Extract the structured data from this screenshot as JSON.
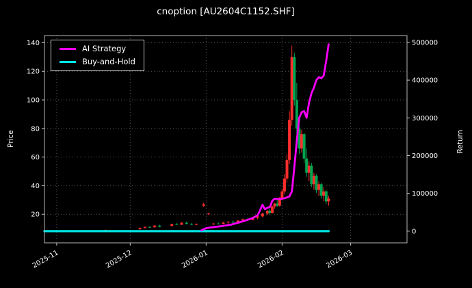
{
  "chart_data": {
    "type": "candlestick+line",
    "title": "cnoption [AU2604C1152.SHF]",
    "left_ylabel": "Price",
    "right_ylabel": "Return",
    "legend_position": "upper left",
    "grid": "dotted",
    "x_tick_labels": [
      "2025-11",
      "2025-12",
      "2026-01",
      "2026-02",
      "2026-03"
    ],
    "x_tick_t": [
      5,
      35,
      66,
      97,
      125
    ],
    "price_ticks": [
      20,
      40,
      60,
      80,
      100,
      120,
      140
    ],
    "return_ticks": [
      0,
      100000,
      200000,
      300000,
      400000,
      500000
    ],
    "price_range": [
      0,
      145
    ],
    "return_range": [
      -31000,
      518000
    ],
    "t_range": [
      0,
      148
    ],
    "candle_colors": {
      "up": "#ff2e2e",
      "down": "#00a550"
    },
    "candles": [
      [
        5,
        8.5,
        8.8,
        8.2,
        8.6
      ],
      [
        9,
        8.6,
        8.8,
        8.0,
        8.2
      ],
      [
        13,
        8.2,
        9.0,
        8.1,
        8.8
      ],
      [
        19,
        8.8,
        9.0,
        8.3,
        8.5
      ],
      [
        25,
        8.5,
        9.3,
        8.4,
        9.1
      ],
      [
        39,
        9.5,
        10.6,
        9.3,
        10.4
      ],
      [
        41,
        10.4,
        11.4,
        10.1,
        11.1
      ],
      [
        43,
        11.1,
        11.9,
        10.6,
        10.9
      ],
      [
        45,
        10.9,
        12.4,
        10.7,
        12.1
      ],
      [
        47,
        12.1,
        12.7,
        10.9,
        11.2
      ],
      [
        52,
        11.8,
        13.4,
        11.6,
        13.1
      ],
      [
        54,
        13.1,
        13.9,
        12.4,
        12.7
      ],
      [
        56,
        12.7,
        14.4,
        12.5,
        14.1
      ],
      [
        58,
        14.1,
        14.9,
        12.9,
        13.2
      ],
      [
        60,
        13.2,
        13.9,
        12.4,
        12.7
      ],
      [
        62,
        12.7,
        13.5,
        12.3,
        13.3
      ],
      [
        65,
        26,
        28,
        25,
        27
      ],
      [
        67,
        20,
        21,
        19.5,
        20.5
      ],
      [
        69,
        13,
        13.8,
        12.5,
        13.5
      ],
      [
        71,
        13.5,
        14.2,
        13,
        13.2
      ],
      [
        73,
        13.2,
        14.5,
        13,
        14.2
      ],
      [
        75,
        14.2,
        15,
        13.5,
        14.8
      ],
      [
        77,
        14.8,
        15.5,
        14,
        14.2
      ],
      [
        79,
        14.2,
        16,
        14,
        15.6
      ],
      [
        81,
        15.6,
        17,
        15,
        16.5
      ],
      [
        83,
        16.5,
        17.5,
        15.5,
        16
      ],
      [
        85,
        16,
        18,
        15.8,
        17.5
      ],
      [
        87,
        17.5,
        19,
        16.5,
        18.5
      ],
      [
        89,
        18.5,
        21,
        18,
        20.5
      ],
      [
        91,
        20.5,
        23,
        19.5,
        22.5
      ],
      [
        92,
        22.5,
        24,
        20,
        21
      ],
      [
        93,
        21,
        26,
        20.5,
        25.5
      ],
      [
        94,
        25.5,
        28,
        24,
        27.5
      ],
      [
        95,
        27.5,
        30,
        25,
        26
      ],
      [
        96,
        26,
        32,
        25.5,
        31
      ],
      [
        97,
        31,
        38,
        30,
        36
      ],
      [
        98,
        36,
        48,
        34,
        45
      ],
      [
        99,
        45,
        62,
        42,
        58
      ],
      [
        100,
        58,
        92,
        55,
        86
      ],
      [
        101,
        86,
        138,
        82,
        130
      ],
      [
        102,
        130,
        133,
        96,
        100
      ],
      [
        103,
        100,
        112,
        76,
        80
      ],
      [
        104,
        80,
        86,
        62,
        66
      ],
      [
        105,
        66,
        79,
        63,
        76
      ],
      [
        106,
        76,
        77,
        56,
        59
      ],
      [
        107,
        59,
        66,
        46,
        49
      ],
      [
        108,
        49,
        57,
        43,
        54
      ],
      [
        109,
        54,
        56,
        39,
        41
      ],
      [
        110,
        41,
        49,
        37,
        47
      ],
      [
        111,
        47,
        48,
        35,
        37
      ],
      [
        112,
        37,
        43,
        33,
        41
      ],
      [
        113,
        41,
        42,
        31,
        33
      ],
      [
        114,
        33,
        39,
        29,
        36
      ],
      [
        115,
        36,
        37,
        27,
        29
      ],
      [
        116,
        29,
        33,
        26,
        31
      ]
    ],
    "series": [
      {
        "name": "AI Strategy",
        "axis": "return",
        "color": "#ff00ff",
        "points": [
          [
            64,
            2000
          ],
          [
            66,
            8000
          ],
          [
            68,
            10000
          ],
          [
            72,
            13000
          ],
          [
            76,
            17000
          ],
          [
            80,
            24000
          ],
          [
            83,
            30000
          ],
          [
            85,
            35000
          ],
          [
            87,
            42000
          ],
          [
            88,
            55000
          ],
          [
            89,
            70000
          ],
          [
            90,
            58000
          ],
          [
            91,
            62000
          ],
          [
            92,
            64000
          ],
          [
            93,
            80000
          ],
          [
            94,
            86000
          ],
          [
            96,
            85000
          ],
          [
            98,
            87000
          ],
          [
            100,
            92000
          ],
          [
            101,
            105000
          ],
          [
            102,
            170000
          ],
          [
            103,
            240000
          ],
          [
            104,
            300000
          ],
          [
            105,
            315000
          ],
          [
            106,
            318000
          ],
          [
            107,
            300000
          ],
          [
            108,
            340000
          ],
          [
            109,
            365000
          ],
          [
            110,
            380000
          ],
          [
            111,
            400000
          ],
          [
            112,
            408000
          ],
          [
            113,
            405000
          ],
          [
            114,
            412000
          ],
          [
            115,
            450000
          ],
          [
            116,
            495000
          ]
        ]
      },
      {
        "name": "Buy-and-Hold",
        "axis": "return",
        "color": "#00e5e5",
        "points": [
          [
            0,
            0
          ],
          [
            116,
            0
          ]
        ]
      }
    ]
  }
}
